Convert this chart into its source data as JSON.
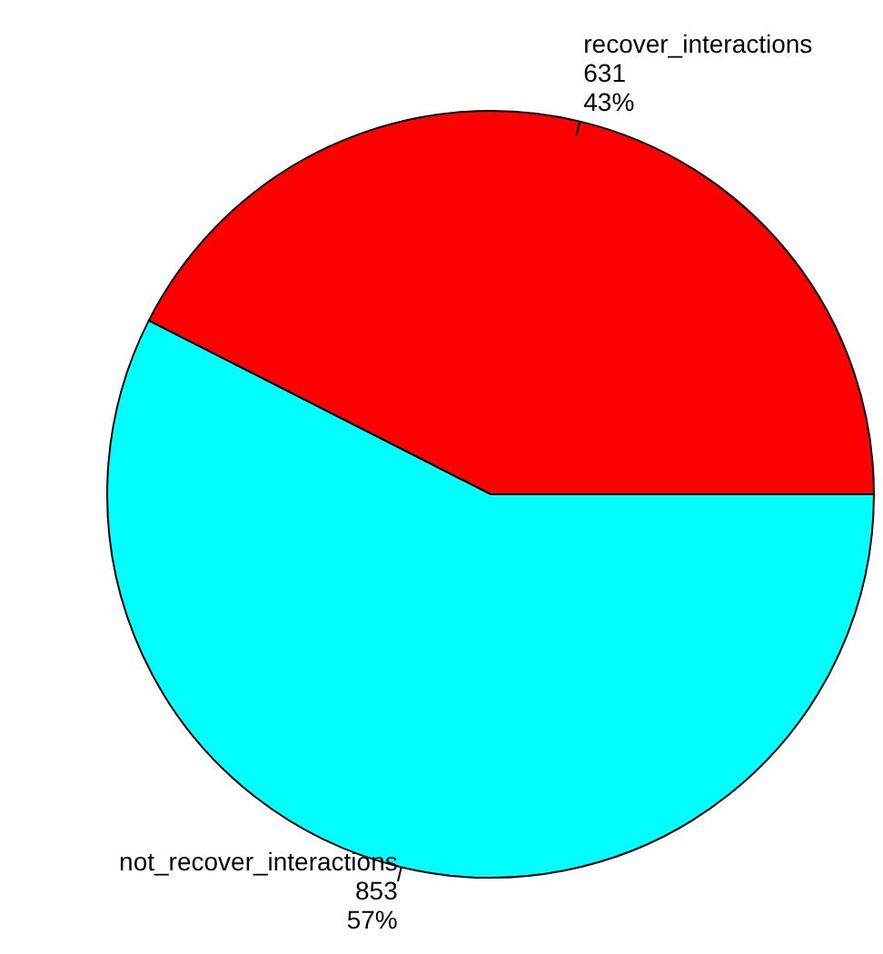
{
  "chart_data": {
    "type": "pie",
    "categories": [
      "recover_interactions",
      "not_recover_interactions"
    ],
    "values": [
      631,
      853
    ],
    "colors": [
      "#ff0000",
      "#00ffff"
    ],
    "value_labels": [
      "631\n43%",
      "853\n57%"
    ],
    "legend": false
  }
}
